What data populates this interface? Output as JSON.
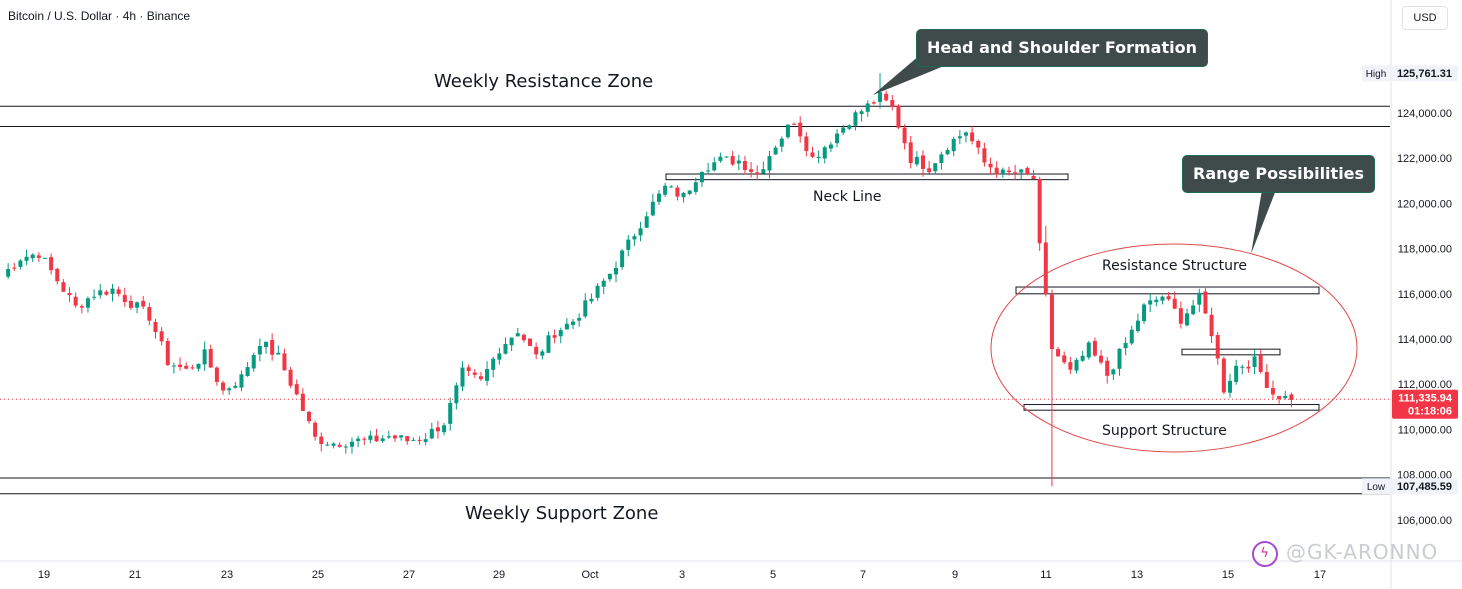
{
  "header": {
    "symbol_title": "Bitcoin / U.S. Dollar · 4h · Binance",
    "currency_button": "USD"
  },
  "annotations": {
    "weekly_resistance": "Weekly Resistance Zone",
    "weekly_support": "Weekly Support Zone",
    "neck_line": "Neck Line",
    "resistance_structure": "Resistance Structure",
    "support_structure": "Support Structure",
    "callout_hs": "Head and Shoulder Formation",
    "callout_range": "Range Possibilities"
  },
  "watermark": {
    "text": "@GK-ARONNO",
    "icon": "lightning-badge-icon"
  },
  "colors": {
    "up": "#089981",
    "down": "#f23645",
    "price_line": "#f23645",
    "ellipse": "#e04a4a",
    "callout_bg": "#3f4a4a",
    "grid_text": "#131722"
  },
  "chart_data": {
    "type": "candlestick",
    "ylim": [
      105000,
      126500
    ],
    "y_ticks": [
      {
        "value": 124000,
        "label": "124,000.00"
      },
      {
        "value": 122000,
        "label": "122,000.00"
      },
      {
        "value": 120000,
        "label": "120,000.00"
      },
      {
        "value": 118000,
        "label": "118,000.00"
      },
      {
        "value": 116000,
        "label": "116,000.00"
      },
      {
        "value": 114000,
        "label": "114,000.00"
      },
      {
        "value": 112000,
        "label": "112,000.00"
      },
      {
        "value": 110000,
        "label": "110,000.00"
      },
      {
        "value": 108000,
        "label": "108,000.00"
      },
      {
        "value": 106000,
        "label": "106,000.00"
      }
    ],
    "x_ticks": [
      "19",
      "21",
      "23",
      "25",
      "27",
      "29",
      "Oct",
      "3",
      "5",
      "7",
      "9",
      "11",
      "13",
      "15",
      "17"
    ],
    "price_markers": {
      "high": {
        "label": "High",
        "value": 125761.31,
        "text": "125,761.31"
      },
      "low": {
        "label": "Low",
        "value": 107485.59,
        "text": "107,485.59"
      },
      "last": {
        "value": 111335.94,
        "text": "111,335.94",
        "countdown": "01:18:06"
      }
    },
    "levels": {
      "weekly_resistance": [
        124300,
        123400
      ],
      "weekly_support": [
        107850,
        107150
      ],
      "neck_line": [
        121300,
        121050
      ],
      "range_resistance": [
        116300,
        116000
      ],
      "range_mid": [
        113550,
        113300
      ],
      "range_support": [
        111100,
        110850
      ]
    },
    "waypoints": [
      [
        0,
        116800
      ],
      [
        3,
        117600
      ],
      [
        6,
        117800
      ],
      [
        9,
        116600
      ],
      [
        12,
        115400
      ],
      [
        15,
        116000
      ],
      [
        18,
        116200
      ],
      [
        21,
        115600
      ],
      [
        24,
        115000
      ],
      [
        27,
        113000
      ],
      [
        30,
        112600
      ],
      [
        33,
        113300
      ],
      [
        36,
        111700
      ],
      [
        39,
        112300
      ],
      [
        42,
        113900
      ],
      [
        45,
        113200
      ],
      [
        48,
        111500
      ],
      [
        51,
        109600
      ],
      [
        54,
        109400
      ],
      [
        57,
        109500
      ],
      [
        60,
        109500
      ],
      [
        63,
        109700
      ],
      [
        66,
        109500
      ],
      [
        69,
        109700
      ],
      [
        72,
        110300
      ],
      [
        75,
        112500
      ],
      [
        78,
        112100
      ],
      [
        81,
        113600
      ],
      [
        84,
        114400
      ],
      [
        87,
        113200
      ],
      [
        90,
        114300
      ],
      [
        93,
        114800
      ],
      [
        96,
        115800
      ],
      [
        99,
        116900
      ],
      [
        102,
        118200
      ],
      [
        105,
        119600
      ],
      [
        108,
        120700
      ],
      [
        111,
        120300
      ],
      [
        114,
        121600
      ],
      [
        117,
        121900
      ],
      [
        120,
        121900
      ],
      [
        123,
        121300
      ],
      [
        126,
        122600
      ],
      [
        129,
        123700
      ],
      [
        132,
        122000
      ],
      [
        135,
        122800
      ],
      [
        138,
        123700
      ],
      [
        141,
        124300
      ],
      [
        143,
        124700
      ],
      [
        145,
        124200
      ],
      [
        148,
        122000
      ],
      [
        151,
        121600
      ],
      [
        154,
        122600
      ],
      [
        157,
        123200
      ],
      [
        160,
        121800
      ],
      [
        163,
        121300
      ],
      [
        166,
        121300
      ],
      [
        168,
        121100
      ],
      [
        169,
        118000
      ],
      [
        171,
        113600
      ],
      [
        174,
        112500
      ],
      [
        177,
        113600
      ],
      [
        180,
        112400
      ],
      [
        183,
        113800
      ],
      [
        186,
        115400
      ],
      [
        189,
        115900
      ],
      [
        192,
        114900
      ],
      [
        195,
        115800
      ],
      [
        197,
        114300
      ],
      [
        199,
        111800
      ],
      [
        201,
        112800
      ],
      [
        204,
        113000
      ],
      [
        207,
        111600
      ],
      [
        210,
        111300
      ]
    ],
    "spikes": [
      {
        "i": 143,
        "high": 125761
      },
      {
        "i": 171,
        "low": 107486
      },
      {
        "i": 170,
        "high": 119000
      }
    ]
  }
}
